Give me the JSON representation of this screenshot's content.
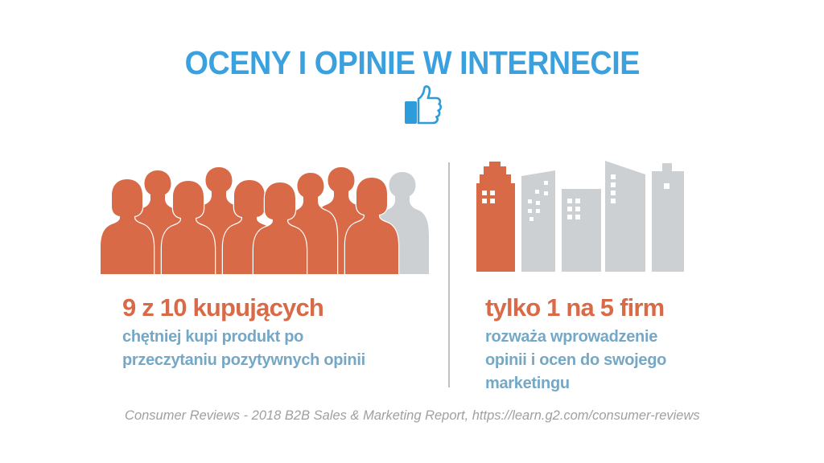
{
  "title": "OCENY I OPINIE W INTERNECIE",
  "header_icon": {
    "name": "thumbs-up",
    "color": "#2D9CDB"
  },
  "left": {
    "heading": "9 z 10 kupujących",
    "subtext": "chętniej kupi produkt po\nprzeczytaniu pozytywnych opinii",
    "stat": {
      "highlighted": 9,
      "total": 10,
      "unit": "kupujących"
    }
  },
  "right": {
    "heading": "tylko 1 na 5 firm",
    "subtext": "rozważa wprowadzenie\nopinii i ocen do swojego\nmarketingu",
    "stat": {
      "highlighted": 1,
      "total": 5,
      "unit": "firm"
    }
  },
  "footer": {
    "text": "Consumer Reviews - 2018 B2B Sales & Marketing Report, https://learn.g2.com/consumer-reviews"
  },
  "colors": {
    "title_blue": "#3BA0DE",
    "icon_blue": "#2D9CDB",
    "accent_orange": "#D96A47",
    "body_blue": "#74A8C6",
    "inactive_gray": "#CDD0D2",
    "divider_gray": "#C0C3C5",
    "footer_gray": "#9EA0A2",
    "background": "#FFFFFF"
  }
}
